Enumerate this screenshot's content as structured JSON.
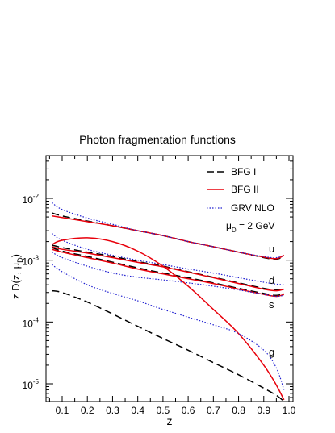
{
  "chart_data": {
    "type": "line",
    "title": "Photon fragmentation functions",
    "xlabel": "z",
    "ylabel": {
      "main": "z D(z, μ",
      "sub": "D",
      "close": ")"
    },
    "xlim": [
      0.05,
      1.0
    ],
    "ylim": [
      5e-06,
      0.05
    ],
    "yscale": "log",
    "x_ticks": [
      "0.1",
      "0.2",
      "0.3",
      "0.4",
      "0.5",
      "0.6",
      "0.7",
      "0.8",
      "0.9",
      "1.0"
    ],
    "y_ticks": [
      {
        "base": "10",
        "exp": "-5",
        "value": 1e-05
      },
      {
        "base": "10",
        "exp": "-4",
        "value": 0.0001
      },
      {
        "base": "10",
        "exp": "-3",
        "value": 0.001
      },
      {
        "base": "10",
        "exp": "-2",
        "value": 0.01
      }
    ],
    "legend": {
      "placement": "top-right",
      "entries": [
        {
          "label": "BFG I",
          "color": "#000000",
          "style": "dashed"
        },
        {
          "label": "BFG II",
          "color": "#e8000b",
          "style": "solid"
        },
        {
          "label": "GRV NLO",
          "color": "#1f1fd0",
          "style": "dotted"
        }
      ],
      "scale_note": {
        "main": "μ",
        "sub": "D",
        "rest": " = 2 GeV"
      }
    },
    "annotations": [
      "u",
      "d",
      "s",
      "g"
    ],
    "x": [
      0.06,
      0.1,
      0.2,
      0.3,
      0.4,
      0.5,
      0.6,
      0.7,
      0.8,
      0.9,
      0.95,
      0.98
    ],
    "series": [
      {
        "group": "u",
        "style": "BFG I",
        "values": [
          0.0058,
          0.0052,
          0.0043,
          0.0036,
          0.003,
          0.0025,
          0.002,
          0.00165,
          0.00135,
          0.0011,
          0.00104,
          0.00115
        ]
      },
      {
        "group": "u",
        "style": "BFG II",
        "values": [
          0.0052,
          0.0049,
          0.0042,
          0.0036,
          0.003,
          0.0025,
          0.002,
          0.00165,
          0.00135,
          0.00112,
          0.00106,
          0.0012
        ]
      },
      {
        "group": "u",
        "style": "GRV NLO",
        "values": [
          0.0085,
          0.0066,
          0.0048,
          0.0038,
          0.003,
          0.0025,
          0.002,
          0.00165,
          0.00135,
          0.00114,
          0.0011,
          0.0012
        ]
      },
      {
        "group": "d",
        "style": "BFG I",
        "values": [
          0.00175,
          0.0016,
          0.00135,
          0.00115,
          0.00095,
          0.0008,
          0.00065,
          0.00053,
          0.00043,
          0.00035,
          0.00033,
          0.00035
        ]
      },
      {
        "group": "d",
        "style": "BFG II",
        "values": [
          0.00165,
          0.0015,
          0.0013,
          0.0011,
          0.00092,
          0.00078,
          0.00064,
          0.00052,
          0.00042,
          0.00034,
          0.00032,
          0.00034
        ]
      },
      {
        "group": "d",
        "style": "GRV NLO",
        "values": [
          0.0027,
          0.0021,
          0.0015,
          0.0012,
          0.001,
          0.00085,
          0.00072,
          0.00062,
          0.00052,
          0.00044,
          0.00041,
          0.0004
        ]
      },
      {
        "group": "s",
        "style": "BFG I",
        "values": [
          0.0016,
          0.0014,
          0.00115,
          0.00093,
          0.00075,
          0.00062,
          0.00052,
          0.00043,
          0.00035,
          0.00029,
          0.00027,
          0.00029
        ]
      },
      {
        "group": "s",
        "style": "BFG II",
        "values": [
          0.0015,
          0.00135,
          0.0011,
          0.0009,
          0.00072,
          0.0006,
          0.0005,
          0.00042,
          0.00034,
          0.00028,
          0.00026,
          0.00028
        ]
      },
      {
        "group": "s",
        "style": "GRV NLO",
        "values": [
          0.00135,
          0.0011,
          0.0008,
          0.00062,
          0.00053,
          0.00048,
          0.00043,
          0.00038,
          0.00033,
          0.00028,
          0.00026,
          0.00027
        ]
      },
      {
        "group": "g",
        "style": "BFG I",
        "values": [
          0.00032,
          0.0003,
          0.00021,
          0.000135,
          8.5e-05,
          5.4e-05,
          3.5e-05,
          2.2e-05,
          1.4e-05,
          8.5e-06,
          6.5e-06,
          5.2e-06
        ]
      },
      {
        "group": "g",
        "style": "BFG II",
        "values": [
          0.0018,
          0.0021,
          0.0023,
          0.002,
          0.0014,
          0.0008,
          0.00038,
          0.00016,
          6.5e-05,
          2e-05,
          9.5e-06,
          5.5e-06
        ]
      },
      {
        "group": "g",
        "style": "GRV NLO",
        "values": [
          0.00085,
          0.00065,
          0.0004,
          0.00029,
          0.00022,
          0.00016,
          0.00012,
          9e-05,
          6.5e-05,
          3.5e-05,
          1.8e-05,
          8e-06
        ]
      }
    ]
  }
}
